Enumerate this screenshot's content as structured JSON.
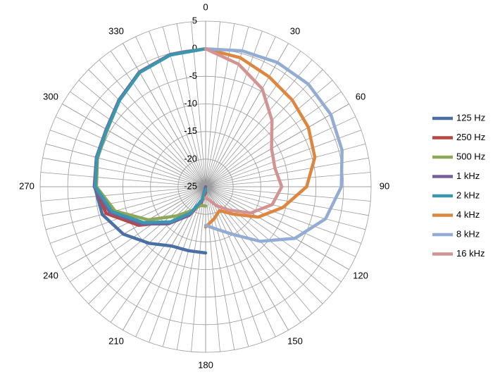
{
  "chart_data": {
    "type": "polar",
    "x": [
      0,
      15,
      30,
      45,
      60,
      75,
      90,
      105,
      120,
      135,
      150,
      165,
      180,
      195,
      210,
      225,
      240,
      255,
      270,
      285,
      300,
      315,
      330,
      345,
      360
    ],
    "angle_ticks": [
      0,
      30,
      60,
      90,
      120,
      150,
      180,
      210,
      240,
      270,
      300,
      330
    ],
    "ylim": [
      -25,
      5
    ],
    "yticks": [
      -25,
      -20,
      -15,
      -10,
      -5,
      0,
      5
    ],
    "grid": true,
    "legend": "right",
    "series": [
      {
        "name": "125 Hz",
        "color": "#4a6fa5",
        "values": [
          null,
          null,
          null,
          null,
          null,
          null,
          null,
          null,
          null,
          null,
          null,
          null,
          -13,
          -13,
          -12.6,
          -10.5,
          -7.8,
          -5.6,
          -4.9,
          -4.5,
          -4.2,
          -2.8,
          -1,
          -0.2,
          0
        ]
      },
      {
        "name": "250 Hz",
        "color": "#b84744",
        "values": [
          null,
          null,
          null,
          null,
          null,
          null,
          null,
          null,
          null,
          null,
          null,
          null,
          -24,
          -22,
          -19,
          -16,
          -11,
          -6.3,
          -5,
          -4.6,
          -4.3,
          -2.8,
          -1,
          -0.2,
          0
        ]
      },
      {
        "name": "500 Hz",
        "color": "#8ea85a",
        "values": [
          null,
          null,
          null,
          null,
          null,
          null,
          null,
          null,
          null,
          null,
          null,
          null,
          -21.5,
          -21.5,
          -20,
          -17.5,
          -13,
          -8,
          -5.2,
          -4.7,
          -4.4,
          -2.9,
          -1,
          -0.2,
          0
        ]
      },
      {
        "name": "1 kHz",
        "color": "#76609a",
        "values": [
          null,
          null,
          null,
          null,
          null,
          null,
          null,
          null,
          null,
          null,
          null,
          null,
          -25,
          -22.5,
          -19,
          -15.5,
          -11.5,
          -7,
          -4.8,
          -4.5,
          -4.2,
          -2.8,
          -1,
          -0.2,
          0
        ]
      },
      {
        "name": "2 kHz",
        "color": "#3b97b0",
        "values": [
          null,
          null,
          null,
          null,
          null,
          null,
          null,
          null,
          null,
          null,
          null,
          null,
          -24.5,
          -22.5,
          -19.5,
          -16,
          -12,
          -7.5,
          -5,
          -4.6,
          -4.3,
          -2.9,
          -1.1,
          -0.3,
          0
        ]
      },
      {
        "name": "4 kHz",
        "color": "#dd8640",
        "values": [
          0,
          -0.8,
          -2,
          -2.8,
          -3.5,
          -4.5,
          -6.7,
          -10.5,
          -14,
          -18,
          -20,
          -19,
          -17.7,
          null,
          null,
          null,
          null,
          null,
          null,
          null,
          null,
          null,
          null,
          null,
          null
        ]
      },
      {
        "name": "8 kHz",
        "color": "#93acd3",
        "values": [
          0,
          0.5,
          1,
          1.3,
          1.2,
          0.6,
          -0.4,
          -2.5,
          -6.3,
          -11,
          -15,
          -17,
          -18,
          null,
          null,
          null,
          null,
          null,
          null,
          null,
          null,
          null,
          null,
          null,
          null
        ]
      },
      {
        "name": "16 kHz",
        "color": "#d29392",
        "values": [
          0,
          -2,
          -4.5,
          -8,
          -11.2,
          -12,
          -11.2,
          -12.5,
          -15.5,
          -19,
          -21,
          -22.5,
          -23,
          null,
          null,
          null,
          null,
          null,
          null,
          null,
          null,
          null,
          null,
          null,
          null
        ]
      }
    ]
  }
}
